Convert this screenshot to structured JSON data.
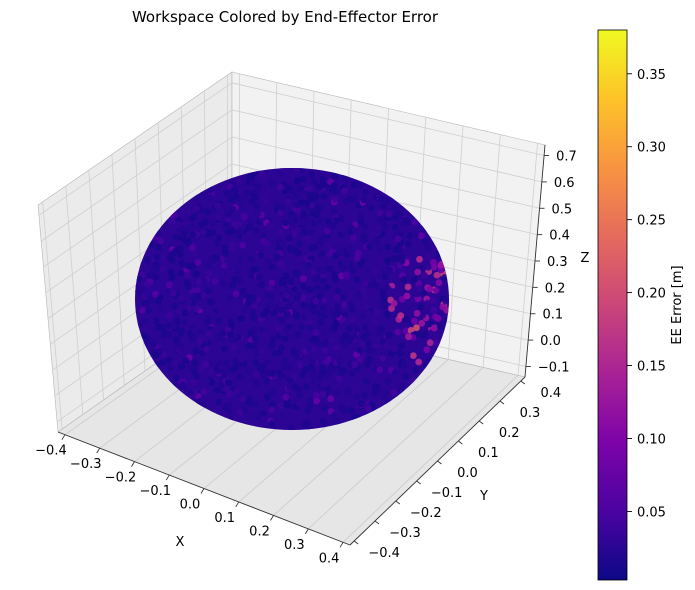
{
  "chart_data": {
    "type": "scatter",
    "projection": "3d",
    "title": "Workspace Colored by End-Effector Error",
    "xlabel": "X",
    "ylabel": "Y",
    "zlabel": "Z",
    "x_ticks": [
      "−0.4",
      "−0.3",
      "−0.2",
      "−0.1",
      "0.0",
      "0.1",
      "0.2",
      "0.3",
      "0.4"
    ],
    "y_ticks": [
      "−0.4",
      "−0.3",
      "−0.2",
      "−0.1",
      "0.0",
      "0.1",
      "0.2",
      "0.3",
      "0.4"
    ],
    "z_ticks": [
      "−0.1",
      "0.0",
      "0.1",
      "0.2",
      "0.3",
      "0.4",
      "0.5",
      "0.6",
      "0.7"
    ],
    "xlim": [
      -0.42,
      0.42
    ],
    "ylim": [
      -0.42,
      0.42
    ],
    "zlim": [
      -0.14,
      0.74
    ],
    "grid": true,
    "point_cloud": {
      "shape": "sphere",
      "center": [
        0.0,
        0.0,
        0.3
      ],
      "radius": 0.4,
      "color_range": [
        0.003,
        0.38
      ],
      "typical_error": 0.03,
      "high_error_region": "near side at +X, +Y, around Z 0.1–0.25, error up to about 0.2"
    },
    "colorbar": {
      "label": "EE Error [m]",
      "colormap": "plasma",
      "range": [
        0.003,
        0.38
      ],
      "ticks": [
        "0.05",
        "0.10",
        "0.15",
        "0.20",
        "0.25",
        "0.30",
        "0.35"
      ],
      "tick_values": [
        0.05,
        0.1,
        0.15,
        0.2,
        0.25,
        0.3,
        0.35
      ]
    }
  }
}
